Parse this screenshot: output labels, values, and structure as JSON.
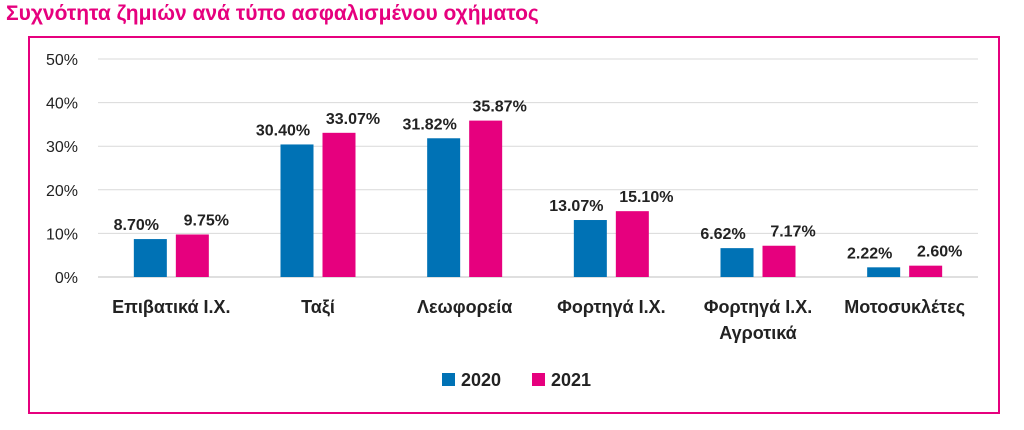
{
  "chart_data": {
    "type": "bar",
    "title": "Συχνότητα ζημιών ανά τύπο ασφαλισμένου οχήματος",
    "categories": [
      [
        "Επιβατικά Ι.Χ."
      ],
      [
        "Ταξί"
      ],
      [
        "Λεωφορεία"
      ],
      [
        "Φορτηγά Ι.Χ."
      ],
      [
        "Φορτηγά Ι.Χ.",
        "Αγροτικά"
      ],
      [
        "Μοτοσυκλέτες"
      ]
    ],
    "series": [
      {
        "name": "2020",
        "color": "#0072b5",
        "values": [
          8.7,
          30.4,
          31.82,
          13.07,
          6.62,
          2.22
        ],
        "labels": [
          "8.70%",
          "30.40%",
          "31.82%",
          "13.07%",
          "6.62%",
          "2.22%"
        ]
      },
      {
        "name": "2021",
        "color": "#e6007e",
        "values": [
          9.75,
          33.07,
          35.87,
          15.1,
          7.17,
          2.6
        ],
        "labels": [
          "9.75%",
          "33.07%",
          "35.87%",
          "15.10%",
          "7.17%",
          "2.60%"
        ]
      }
    ],
    "ylim": [
      0,
      50
    ],
    "yticks": [
      0,
      10,
      20,
      30,
      40,
      50
    ],
    "ytick_labels": [
      "0%",
      "10%",
      "20%",
      "30%",
      "40%",
      "50%"
    ],
    "grid": true,
    "legend_position": "bottom"
  }
}
